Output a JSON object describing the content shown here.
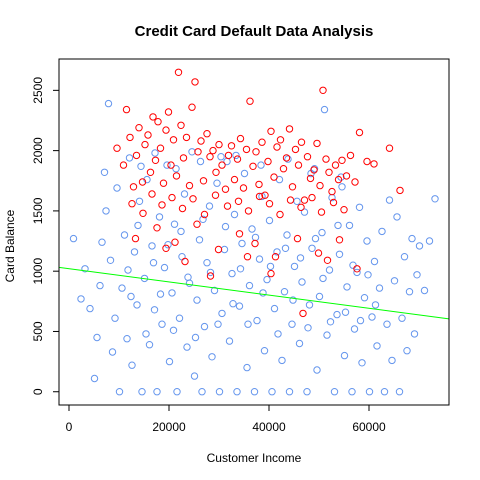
{
  "chart_data": {
    "type": "scatter",
    "title": "Credit Card Default Data Analysis",
    "xlabel": "Customer Income",
    "ylabel": "Card Balance",
    "xlim": [
      -2000,
      76000
    ],
    "ylim": [
      -110,
      2760
    ],
    "x_ticks": [
      0,
      20000,
      40000,
      60000
    ],
    "x_tick_labels": [
      "0",
      "20000",
      "40000",
      "60000"
    ],
    "y_ticks": [
      0,
      500,
      1000,
      1500,
      2000,
      2500
    ],
    "y_tick_labels": [
      "0",
      "500",
      "1000",
      "1500",
      "2000",
      "2500"
    ],
    "grid": false,
    "legend": "none",
    "colors": {
      "no_default": "#6495ED",
      "default": "#FF0000",
      "fit_line": "#00FF00"
    },
    "series": [
      {
        "color": "#6495ED",
        "points": [
          [
            900,
            1270
          ],
          [
            2400,
            770
          ],
          [
            3200,
            1020
          ],
          [
            4200,
            690
          ],
          [
            5100,
            110
          ],
          [
            5600,
            450
          ],
          [
            6200,
            880
          ],
          [
            6600,
            1240
          ],
          [
            7100,
            1820
          ],
          [
            7400,
            1500
          ],
          [
            7900,
            2390
          ],
          [
            8300,
            1090
          ],
          [
            8700,
            330
          ],
          [
            9200,
            610
          ],
          [
            9600,
            1690
          ],
          [
            10100,
            0
          ],
          [
            10600,
            860
          ],
          [
            11100,
            1300
          ],
          [
            11600,
            440
          ],
          [
            12100,
            1940
          ],
          [
            12600,
            220
          ],
          [
            13100,
            1160
          ],
          [
            13600,
            720
          ],
          [
            14100,
            1580
          ],
          [
            14600,
            0
          ],
          [
            15100,
            940
          ],
          [
            15600,
            1760
          ],
          [
            16100,
            390
          ],
          [
            16600,
            1210
          ],
          [
            17100,
            680
          ],
          [
            17600,
            0
          ],
          [
            18100,
            1450
          ],
          [
            18600,
            560
          ],
          [
            19100,
            1030
          ],
          [
            19600,
            1880
          ],
          [
            20100,
            250
          ],
          [
            20600,
            820
          ],
          [
            21100,
            1390
          ],
          [
            21600,
            0
          ],
          [
            22100,
            610
          ],
          [
            22600,
            1120
          ],
          [
            23100,
            1640
          ],
          [
            23600,
            370
          ],
          [
            24100,
            900
          ],
          [
            24600,
            1990
          ],
          [
            25100,
            130
          ],
          [
            25600,
            760
          ],
          [
            26100,
            1260
          ],
          [
            26600,
            0
          ],
          [
            27100,
            540
          ],
          [
            27600,
            1070
          ],
          [
            28100,
            1540
          ],
          [
            28600,
            290
          ],
          [
            29100,
            840
          ],
          [
            29600,
            1730
          ],
          [
            30100,
            0
          ],
          [
            30600,
            650
          ],
          [
            31100,
            1180
          ],
          [
            31600,
            1910
          ],
          [
            32100,
            420
          ],
          [
            32600,
            980
          ],
          [
            33100,
            1470
          ],
          [
            33600,
            0
          ],
          [
            34100,
            710
          ],
          [
            34600,
            1230
          ],
          [
            35100,
            1810
          ],
          [
            35600,
            200
          ],
          [
            36100,
            880
          ],
          [
            36600,
            1350
          ],
          [
            37100,
            0
          ],
          [
            37600,
            590
          ],
          [
            38100,
            1100
          ],
          [
            38600,
            1620
          ],
          [
            39100,
            340
          ],
          [
            39600,
            930
          ],
          [
            40100,
            1420
          ],
          [
            40600,
            0
          ],
          [
            41100,
            690
          ],
          [
            41600,
            1160
          ],
          [
            42100,
            1760
          ],
          [
            42600,
            260
          ],
          [
            43100,
            830
          ],
          [
            43600,
            1300
          ],
          [
            44100,
            0
          ],
          [
            44600,
            560
          ],
          [
            45100,
            1040
          ],
          [
            45600,
            1580
          ],
          [
            46100,
            400
          ],
          [
            46600,
            910
          ],
          [
            47100,
            1490
          ],
          [
            47600,
            0
          ],
          [
            48100,
            720
          ],
          [
            48600,
            1190
          ],
          [
            49100,
            1850
          ],
          [
            49600,
            180
          ],
          [
            50100,
            790
          ],
          [
            50600,
            1320
          ],
          [
            51100,
            2340
          ],
          [
            51600,
            470
          ],
          [
            52100,
            1010
          ],
          [
            52600,
            1610
          ],
          [
            53100,
            0
          ],
          [
            53600,
            640
          ],
          [
            54100,
            1140
          ],
          [
            54600,
            1700
          ],
          [
            55100,
            300
          ],
          [
            55600,
            870
          ],
          [
            56100,
            1380
          ],
          [
            56600,
            0
          ],
          [
            57100,
            520
          ],
          [
            57600,
            990
          ],
          [
            58100,
            1530
          ],
          [
            58600,
            240
          ],
          [
            59100,
            780
          ],
          [
            59600,
            1250
          ],
          [
            60100,
            0
          ],
          [
            60600,
            620
          ],
          [
            61100,
            1080
          ],
          [
            61600,
            380
          ],
          [
            62100,
            860
          ],
          [
            62600,
            1330
          ],
          [
            63100,
            0
          ],
          [
            63600,
            560
          ],
          [
            64100,
            1590
          ],
          [
            64600,
            260
          ],
          [
            65100,
            920
          ],
          [
            65600,
            1450
          ],
          [
            66100,
            0
          ],
          [
            66600,
            610
          ],
          [
            67100,
            1120
          ],
          [
            67600,
            340
          ],
          [
            68100,
            830
          ],
          [
            68600,
            1270
          ],
          [
            69100,
            480
          ],
          [
            69600,
            970
          ],
          [
            70100,
            1210
          ],
          [
            71100,
            840
          ],
          [
            72100,
            1250
          ],
          [
            73200,
            1600
          ],
          [
            11800,
            1010
          ],
          [
            12400,
            790
          ],
          [
            13800,
            1380
          ],
          [
            15400,
            480
          ],
          [
            16900,
            1070
          ],
          [
            18300,
            810
          ],
          [
            19800,
            1220
          ],
          [
            20900,
            510
          ],
          [
            22400,
            1330
          ],
          [
            23800,
            950
          ],
          [
            25300,
            450
          ],
          [
            26800,
            1430
          ],
          [
            28300,
            990
          ],
          [
            29800,
            560
          ],
          [
            31300,
            1370
          ],
          [
            32800,
            730
          ],
          [
            34300,
            1020
          ],
          [
            35800,
            560
          ],
          [
            37300,
            1280
          ],
          [
            38800,
            820
          ],
          [
            40300,
            1040
          ],
          [
            41800,
            480
          ],
          [
            43300,
            1190
          ],
          [
            44800,
            760
          ],
          [
            46300,
            1110
          ],
          [
            47800,
            530
          ],
          [
            49300,
            1270
          ],
          [
            50800,
            940
          ],
          [
            52300,
            580
          ],
          [
            53800,
            1380
          ],
          [
            55300,
            660
          ],
          [
            56800,
            1050
          ],
          [
            58300,
            590
          ],
          [
            59800,
            970
          ],
          [
            61300,
            720
          ],
          [
            17200,
            1980
          ],
          [
            21400,
            1850
          ],
          [
            26300,
            1910
          ],
          [
            33400,
            1960
          ],
          [
            38400,
            1880
          ],
          [
            43800,
            1930
          ],
          [
            48400,
            1810
          ],
          [
            54400,
            1780
          ],
          [
            14400,
            1870
          ],
          [
            30400,
            1950
          ]
        ]
      },
      {
        "color": "#FF0000",
        "points": [
          [
            9600,
            2020
          ],
          [
            10900,
            1880
          ],
          [
            11500,
            2340
          ],
          [
            12200,
            2110
          ],
          [
            12900,
            1700
          ],
          [
            13500,
            1960
          ],
          [
            14000,
            2190
          ],
          [
            14700,
            1740
          ],
          [
            15200,
            2050
          ],
          [
            15800,
            2130
          ],
          [
            16300,
            1820
          ],
          [
            16800,
            2280
          ],
          [
            17300,
            1920
          ],
          [
            17800,
            2240
          ],
          [
            18300,
            2020
          ],
          [
            18900,
            1730
          ],
          [
            19400,
            2170
          ],
          [
            19900,
            2320
          ],
          [
            20400,
            1880
          ],
          [
            20900,
            2090
          ],
          [
            21500,
            1790
          ],
          [
            21900,
            2650
          ],
          [
            22400,
            2210
          ],
          [
            22900,
            1940
          ],
          [
            23500,
            2110
          ],
          [
            24100,
            1710
          ],
          [
            24600,
            2360
          ],
          [
            25200,
            2570
          ],
          [
            25800,
            1990
          ],
          [
            26400,
            2080
          ],
          [
            26900,
            1750
          ],
          [
            27600,
            2140
          ],
          [
            28200,
            1950
          ],
          [
            28800,
            2000
          ],
          [
            29400,
            1820
          ],
          [
            30000,
            2050
          ],
          [
            30600,
            1880
          ],
          [
            31300,
            1680
          ],
          [
            31900,
            1960
          ],
          [
            32500,
            2040
          ],
          [
            33100,
            1760
          ],
          [
            33700,
            1930
          ],
          [
            34300,
            2100
          ],
          [
            34900,
            1690
          ],
          [
            35500,
            2010
          ],
          [
            36200,
            2410
          ],
          [
            36800,
            1870
          ],
          [
            37400,
            1990
          ],
          [
            38000,
            1720
          ],
          [
            38600,
            2070
          ],
          [
            39200,
            1630
          ],
          [
            39800,
            1910
          ],
          [
            40400,
            2160
          ],
          [
            41000,
            1780
          ],
          [
            41600,
            2030
          ],
          [
            42300,
            2090
          ],
          [
            42900,
            1850
          ],
          [
            43500,
            1940
          ],
          [
            44100,
            2180
          ],
          [
            44700,
            1700
          ],
          [
            45300,
            2010
          ],
          [
            45900,
            1880
          ],
          [
            46500,
            2070
          ],
          [
            47100,
            1590
          ],
          [
            47700,
            1950
          ],
          [
            48300,
            1770
          ],
          [
            49000,
            1840
          ],
          [
            49600,
            2060
          ],
          [
            50200,
            1710
          ],
          [
            50800,
            2500
          ],
          [
            51400,
            1930
          ],
          [
            52000,
            1820
          ],
          [
            52600,
            1660
          ],
          [
            53300,
            1880
          ],
          [
            53900,
            1760
          ],
          [
            54600,
            1920
          ],
          [
            55500,
            1790
          ],
          [
            56300,
            1960
          ],
          [
            57200,
            1740
          ],
          [
            58100,
            2150
          ],
          [
            59600,
            1910
          ],
          [
            61000,
            1890
          ],
          [
            64100,
            2020
          ],
          [
            66200,
            1670
          ],
          [
            12600,
            1560
          ],
          [
            14800,
            1480
          ],
          [
            16600,
            1640
          ],
          [
            18600,
            1550
          ],
          [
            20600,
            1610
          ],
          [
            22700,
            1520
          ],
          [
            24800,
            1600
          ],
          [
            27100,
            1470
          ],
          [
            29300,
            1630
          ],
          [
            31700,
            1540
          ],
          [
            33900,
            1580
          ],
          [
            35900,
            1500
          ],
          [
            38100,
            1620
          ],
          [
            40100,
            1560
          ],
          [
            42200,
            1470
          ],
          [
            44300,
            1590
          ],
          [
            46400,
            1530
          ],
          [
            48600,
            1610
          ],
          [
            50500,
            1490
          ],
          [
            52900,
            1570
          ],
          [
            55000,
            1510
          ],
          [
            13300,
            1270
          ],
          [
            17600,
            1360
          ],
          [
            21200,
            1240
          ],
          [
            25600,
            1390
          ],
          [
            29900,
            1180
          ],
          [
            34100,
            1310
          ],
          [
            37200,
            1230
          ],
          [
            41300,
            1120
          ],
          [
            45700,
            1270
          ],
          [
            49900,
            1150
          ],
          [
            54100,
            1260
          ],
          [
            57600,
            1020
          ],
          [
            35700,
            1120
          ],
          [
            28300,
            960
          ],
          [
            46800,
            650
          ],
          [
            40400,
            980
          ],
          [
            23200,
            1080
          ],
          [
            51700,
            1090
          ],
          [
            19400,
            1190
          ]
        ]
      }
    ],
    "fit_line": [
      [
        -2000,
        1032
      ],
      [
        76000,
        604
      ]
    ]
  }
}
